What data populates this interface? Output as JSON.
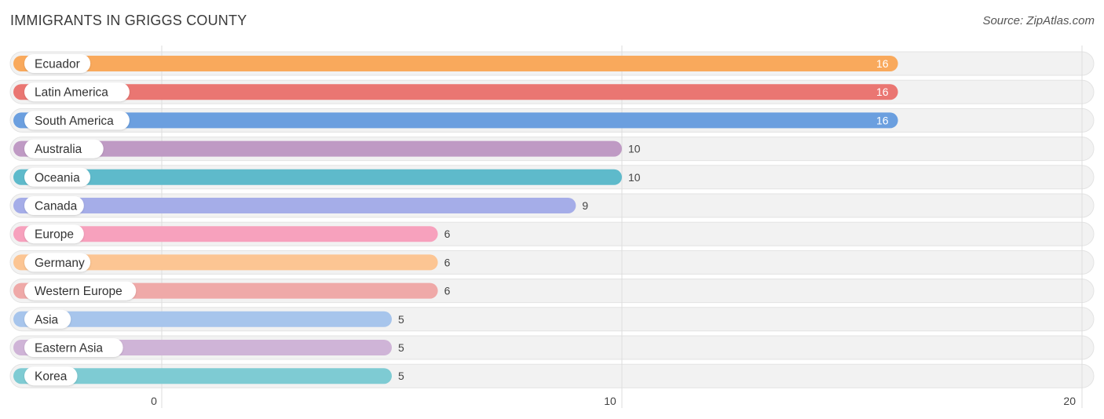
{
  "chart_data": {
    "type": "bar",
    "orientation": "horizontal",
    "title": "IMMIGRANTS IN GRIGGS COUNTY",
    "source": "Source: ZipAtlas.com",
    "categories": [
      "Ecuador",
      "Latin America",
      "South America",
      "Australia",
      "Oceania",
      "Canada",
      "Europe",
      "Germany",
      "Western Europe",
      "Asia",
      "Eastern Asia",
      "Korea"
    ],
    "values": [
      16,
      16,
      16,
      10,
      10,
      9,
      6,
      6,
      6,
      5,
      5,
      5
    ],
    "colors": [
      "#f9a95c",
      "#ea7672",
      "#6b9fdf",
      "#bf9ac4",
      "#5ebacb",
      "#a5ade8",
      "#f7a1bd",
      "#fcc593",
      "#efa9a8",
      "#a7c5ec",
      "#cfb4d7",
      "#7ecbd3"
    ],
    "xlim": [
      0,
      20
    ],
    "xticks": [
      0,
      10,
      20
    ],
    "xlabel": "",
    "ylabel": "",
    "grid": true
  }
}
